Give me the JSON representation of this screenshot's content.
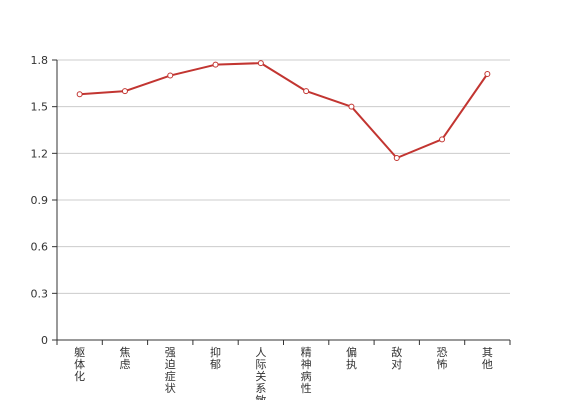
{
  "chart_data": {
    "type": "line",
    "title": "",
    "xlabel": "",
    "ylabel": "",
    "categories": [
      "躯体化",
      "焦虑",
      "强迫症状",
      "抑郁",
      "人际关系敏感",
      "精神病性",
      "偏执",
      "敌对",
      "恐怖",
      "其他"
    ],
    "series": [
      {
        "values": [
          1.58,
          1.6,
          1.7,
          1.77,
          1.78,
          1.6,
          1.5,
          1.17,
          1.29,
          1.71
        ]
      }
    ],
    "yticks": [
      "0",
      "0.3",
      "0.6",
      "0.9",
      "1.2",
      "1.5",
      "1.8"
    ],
    "ylim": [
      0,
      1.8
    ],
    "grid": true,
    "legend": "none",
    "colors": {
      "line": "#c23531",
      "marker_fill": "#ffffff",
      "grid": "#cccccc",
      "axis": "#333333"
    }
  }
}
